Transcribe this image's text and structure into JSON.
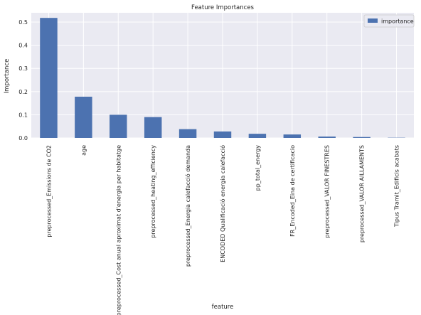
{
  "chart_data": {
    "type": "bar",
    "title": "Feature Importances",
    "xlabel": "feature",
    "ylabel": "Importance",
    "ylim": [
      0,
      0.54
    ],
    "yticks": [
      "0.0",
      "0.1",
      "0.2",
      "0.3",
      "0.4",
      "0.5"
    ],
    "grid": true,
    "legend_position": "top-right",
    "categories": [
      "preprocessed_Emissions de CO2",
      "age",
      "preprocessed_Cost anual aproximat d'energia per habitatge",
      "preprocessed_heating_efficiency",
      "preprocessed_Energia calefacció demanda",
      "ENCODED Qualificació energia calefacció",
      "pp_total_energy",
      "FR_Encoded_Eina de certificacio",
      "preprocessed_VALOR FINESTRES",
      "preprocessed_VALOR AILLAMENTS",
      "Tipus Tramit_Edificis acabats"
    ],
    "series": [
      {
        "name": "importance",
        "color": "#4c72b0",
        "values": [
          0.518,
          0.178,
          0.1,
          0.09,
          0.038,
          0.028,
          0.018,
          0.015,
          0.006,
          0.004,
          0.001
        ]
      }
    ]
  }
}
